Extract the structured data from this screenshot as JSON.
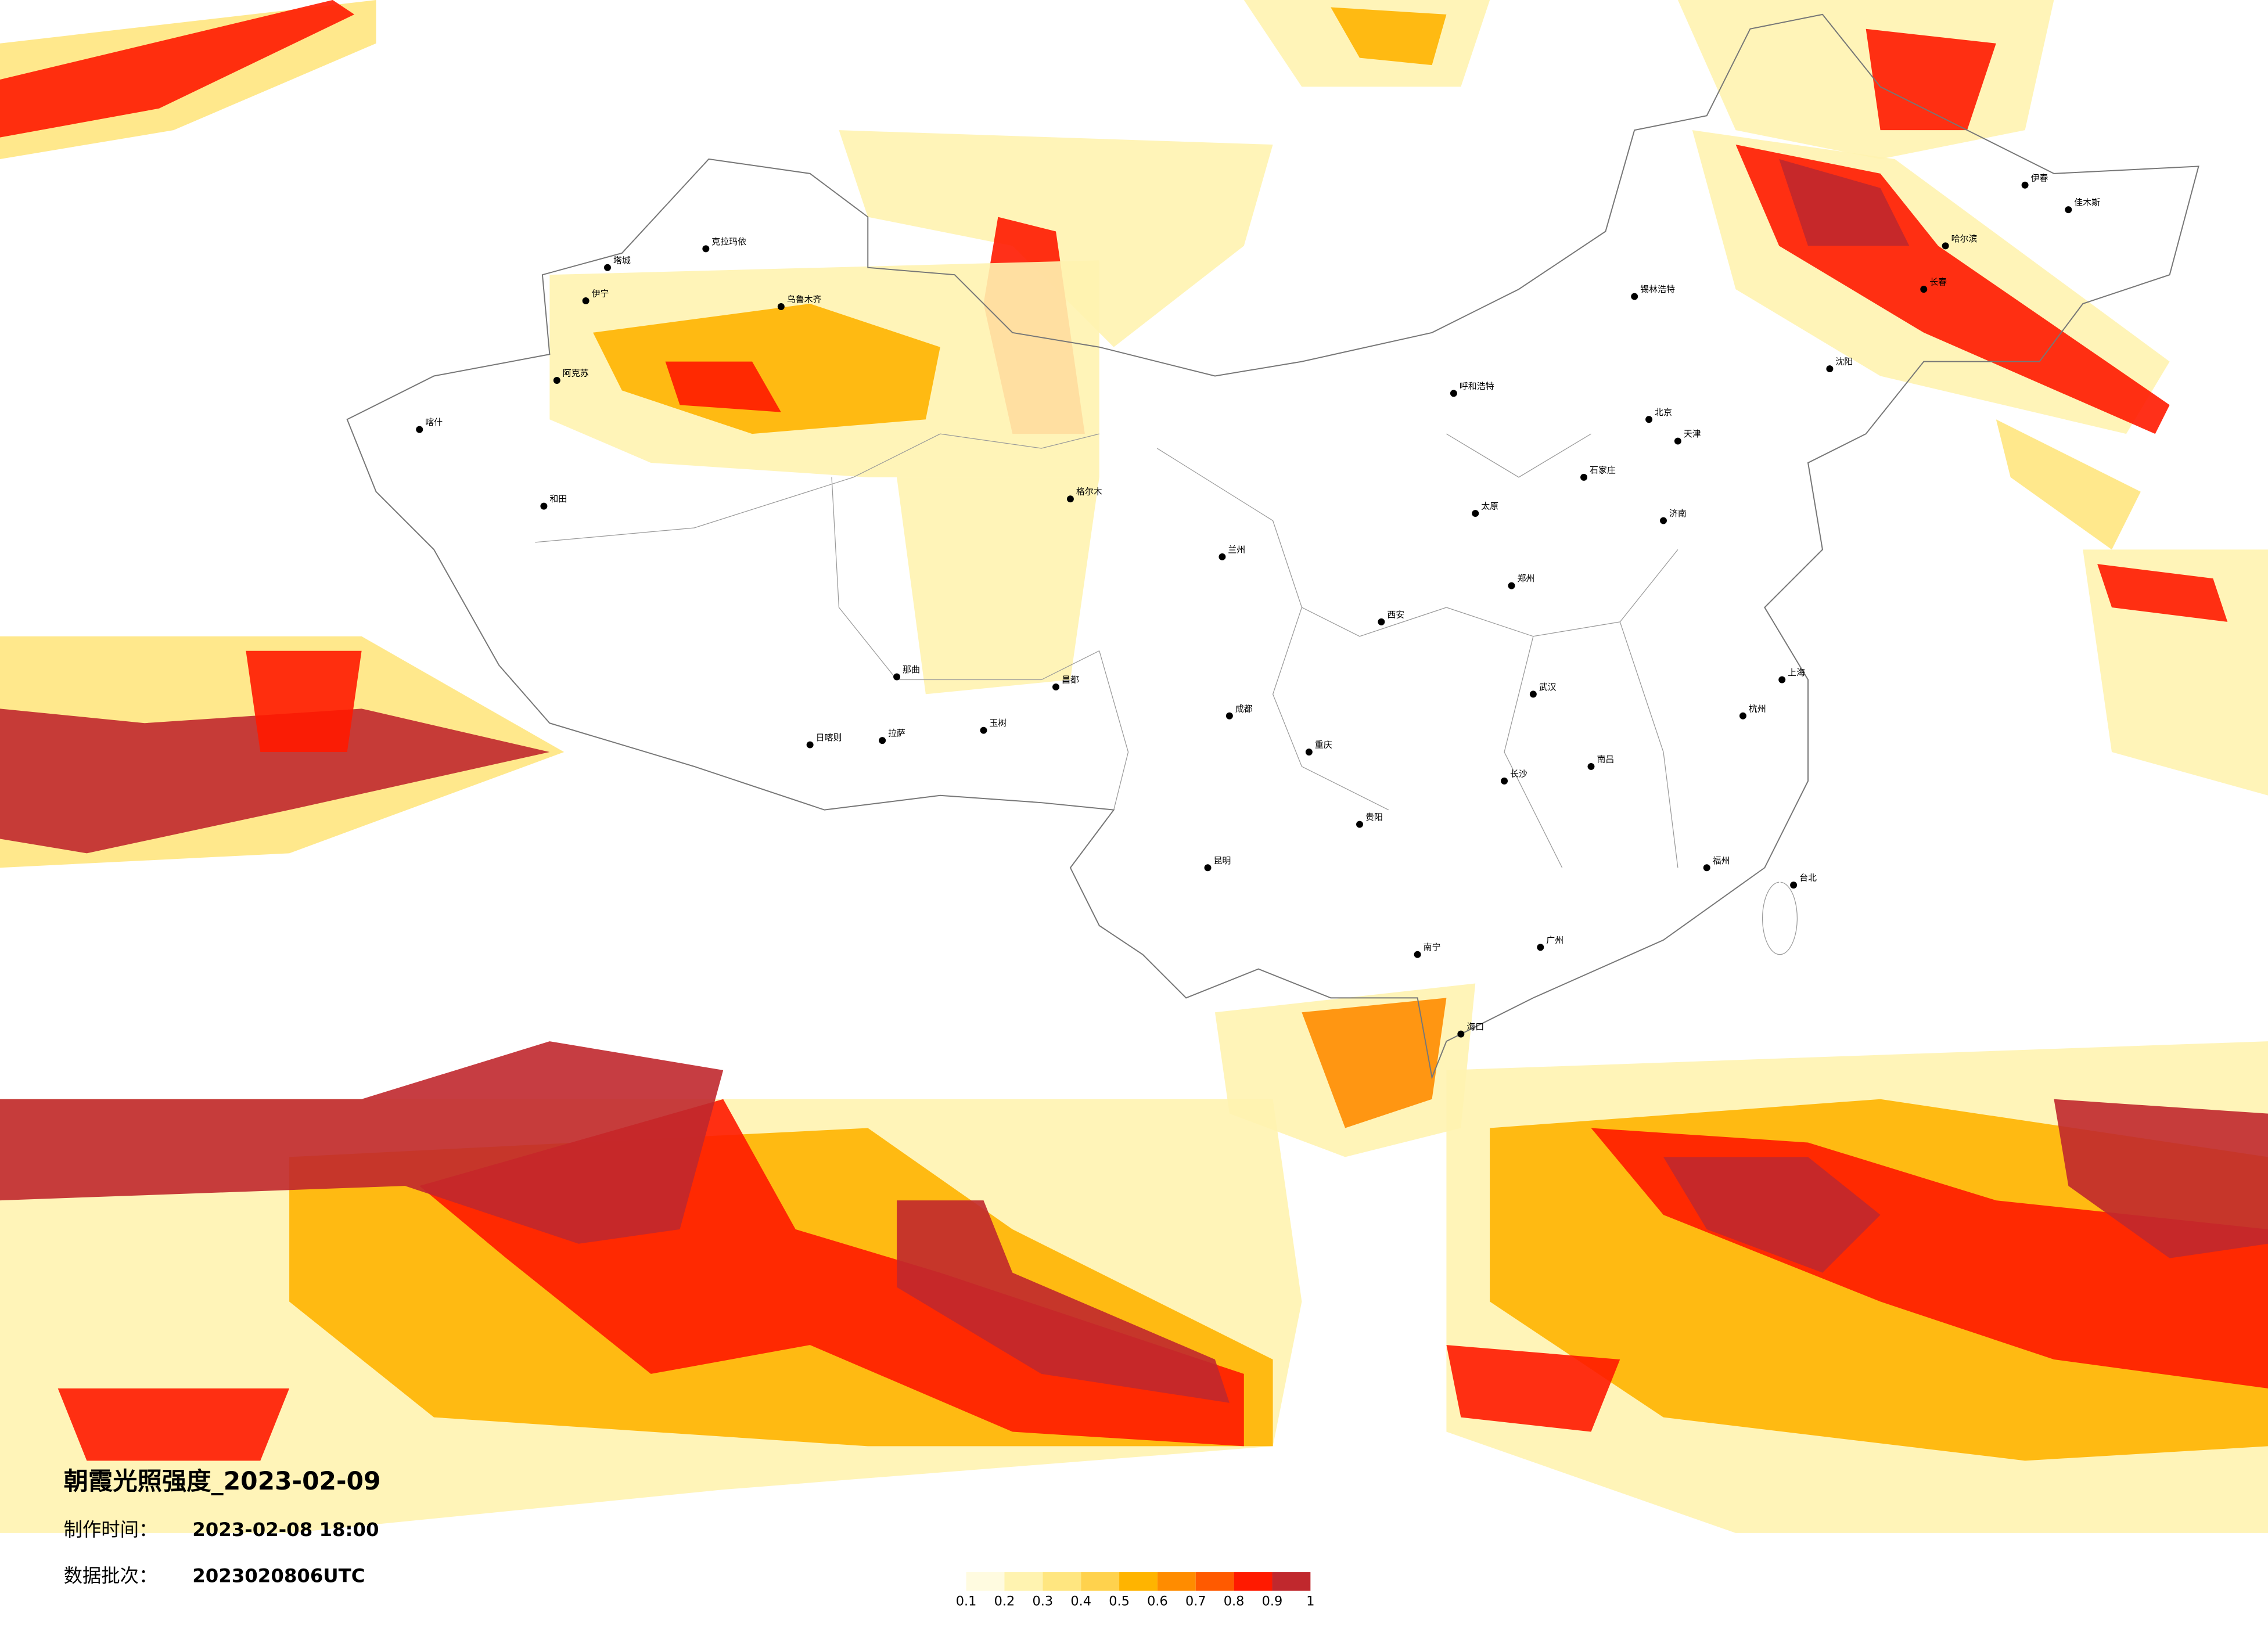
{
  "title": "朝霞光照强度_2023-02-09",
  "production_time_label": "制作时间：",
  "production_time": "2023-02-08 18:00",
  "batch_label": "数据批次：",
  "batch": "2023020806UTC",
  "colorbar": {
    "ticks": [
      0.1,
      0.2,
      0.3,
      0.4,
      0.5,
      0.6,
      0.7,
      0.8,
      0.9,
      1
    ],
    "colors": [
      "#fffbe0",
      "#fff3b0",
      "#ffe680",
      "#ffd24d",
      "#ffb400",
      "#ff8c00",
      "#ff5a00",
      "#ff1a00",
      "#c0282d"
    ]
  },
  "cities": [
    "克拉玛依",
    "乌鲁木齐",
    "伊宁",
    "塔城",
    "阿克苏",
    "喀什",
    "和田",
    "格尔木",
    "拉萨",
    "日喀则",
    "那曲",
    "昌都",
    "玉树",
    "呼和浩特",
    "锡林浩特",
    "北京",
    "天津",
    "石家庄",
    "太原",
    "济南",
    "郑州",
    "西安",
    "兰州",
    "成都",
    "重庆",
    "贵阳",
    "昆明",
    "南宁",
    "长沙",
    "武汉",
    "南昌",
    "杭州",
    "上海",
    "福州",
    "广州",
    "海口",
    "台北",
    "沈阳",
    "长春",
    "哈尔滨",
    "伊春",
    "佳木斯"
  ]
}
